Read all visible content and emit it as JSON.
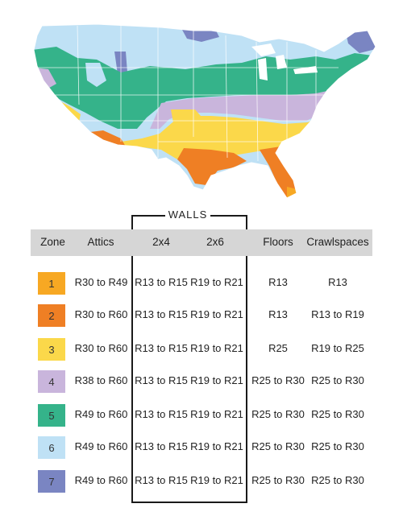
{
  "zone_colors": {
    "1": "#f7a823",
    "2": "#ef7f24",
    "3": "#fbd84a",
    "4": "#c9b5dc",
    "5": "#35b38a",
    "6": "#bfe1f5",
    "7": "#7a85c2"
  },
  "walls_label": "WALLS",
  "headers": {
    "zone": "Zone",
    "attics": "Attics",
    "wall_2x4": "2x4",
    "wall_2x6": "2x6",
    "floors": "Floors",
    "crawlspaces": "Crawlspaces"
  },
  "rows": [
    {
      "zone": "1",
      "attics": "R30 to R49",
      "wall_2x4": "R13 to R15",
      "wall_2x6": "R19 to R21",
      "floors": "R13",
      "crawlspaces": "R13"
    },
    {
      "zone": "2",
      "attics": "R30 to R60",
      "wall_2x4": "R13 to R15",
      "wall_2x6": "R19 to R21",
      "floors": "R13",
      "crawlspaces": "R13 to R19"
    },
    {
      "zone": "3",
      "attics": "R30 to R60",
      "wall_2x4": "R13 to R15",
      "wall_2x6": "R19 to R21",
      "floors": "R25",
      "crawlspaces": "R19 to R25"
    },
    {
      "zone": "4",
      "attics": "R38 to R60",
      "wall_2x4": "R13 to R15",
      "wall_2x6": "R19 to R21",
      "floors": "R25 to R30",
      "crawlspaces": "R25 to R30"
    },
    {
      "zone": "5",
      "attics": "R49 to R60",
      "wall_2x4": "R13 to R15",
      "wall_2x6": "R19 to R21",
      "floors": "R25 to R30",
      "crawlspaces": "R25 to R30"
    },
    {
      "zone": "6",
      "attics": "R49 to R60",
      "wall_2x4": "R13 to R15",
      "wall_2x6": "R19 to R21",
      "floors": "R25 to R30",
      "crawlspaces": "R25 to R30"
    },
    {
      "zone": "7",
      "attics": "R49 to R60",
      "wall_2x4": "R13 to R15",
      "wall_2x6": "R19 to R21",
      "floors": "R25 to R30",
      "crawlspaces": "R25 to R30"
    }
  ]
}
